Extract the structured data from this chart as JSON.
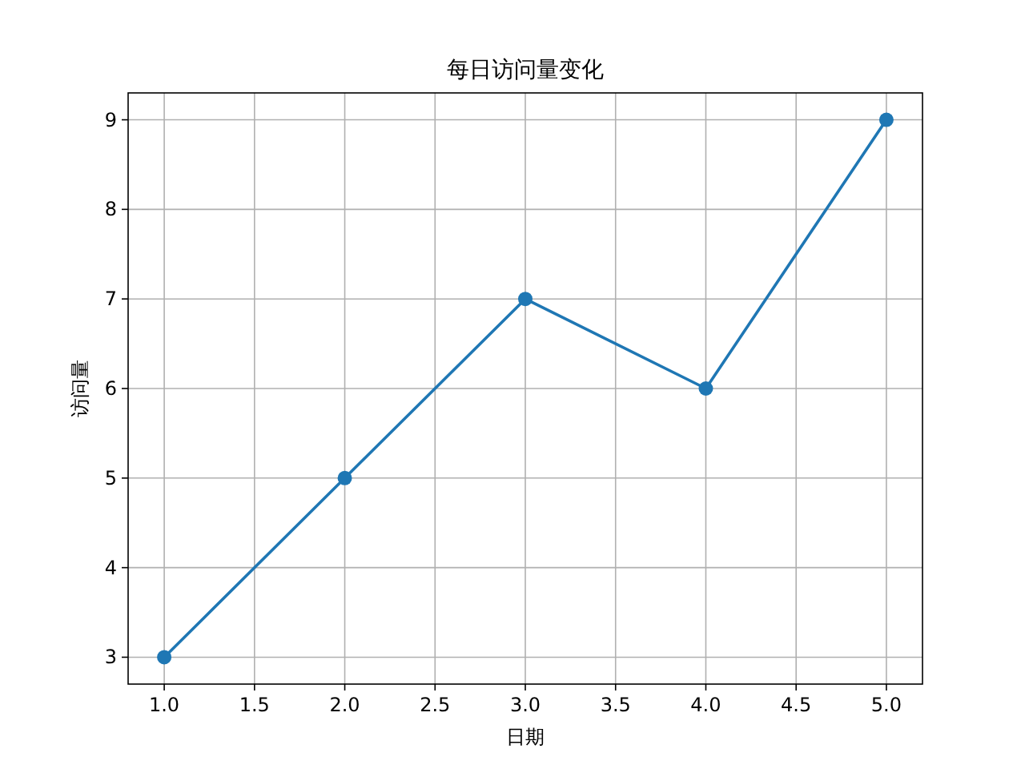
{
  "chart_data": {
    "type": "line",
    "title": "每日访问量变化",
    "xlabel": "日期",
    "ylabel": "访问量",
    "x": [
      1,
      2,
      3,
      4,
      5
    ],
    "series": [
      {
        "color": "#1f77b4",
        "values": [
          3,
          5,
          7,
          6,
          9
        ]
      }
    ],
    "xlim": [
      0.8,
      5.2
    ],
    "ylim": [
      2.7,
      9.3
    ],
    "xticks": [
      {
        "value": 1,
        "label": "1.0"
      },
      {
        "value": 1.5,
        "label": "1.5"
      },
      {
        "value": 2,
        "label": "2.0"
      },
      {
        "value": 2.5,
        "label": "2.5"
      },
      {
        "value": 3,
        "label": "3.0"
      },
      {
        "value": 3.5,
        "label": "3.5"
      },
      {
        "value": 4,
        "label": "4.0"
      },
      {
        "value": 4.5,
        "label": "4.5"
      },
      {
        "value": 5,
        "label": "5.0"
      }
    ],
    "yticks": [
      3,
      4,
      5,
      6,
      7,
      8,
      9
    ],
    "grid": true,
    "marker": "circle",
    "line_style": "solid"
  }
}
